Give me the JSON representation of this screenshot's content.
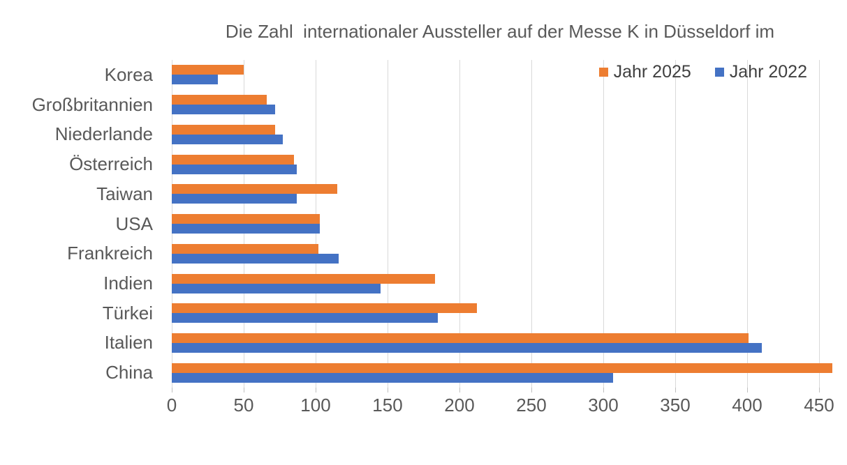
{
  "colors": {
    "series_2025": "#ED7D31",
    "series_2022": "#4472C4",
    "gridline": "#D9D9D9",
    "text": "#595959"
  },
  "chart_data": {
    "type": "bar",
    "orientation": "horizontal",
    "title": "Die Zahl  internationaler Aussteller auf der Messe K in Düsseldorf im",
    "categories": [
      "Korea",
      "Großbritannien",
      "Niederlande",
      "Österreich",
      "Taiwan",
      "USA",
      "Frankreich",
      "Indien",
      "Türkei",
      "Italien",
      "China"
    ],
    "series": [
      {
        "name": "Jahr 2025",
        "color": "#ED7D31",
        "values": [
          50,
          66,
          72,
          85,
          115,
          103,
          102,
          183,
          212,
          401,
          459
        ]
      },
      {
        "name": "Jahr 2022",
        "color": "#4472C4",
        "values": [
          32,
          72,
          77,
          87,
          87,
          103,
          116,
          145,
          185,
          410,
          307
        ]
      }
    ],
    "x_axis": {
      "ticks": [
        0,
        50,
        100,
        150,
        200,
        250,
        300,
        350,
        400,
        450
      ],
      "max": 460
    },
    "legend_position": "top-right",
    "grid": true
  }
}
